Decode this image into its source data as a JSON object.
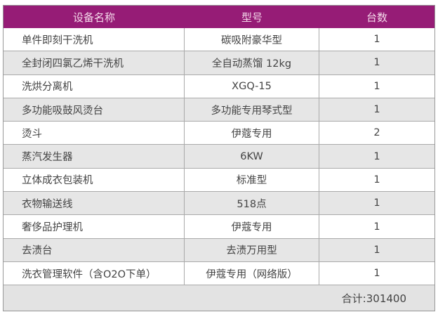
{
  "header": {
    "name": "设备名称",
    "model": "型号",
    "qty": "台数"
  },
  "rows": [
    {
      "name": "单件即刻干洗机",
      "model": "碳吸附豪华型",
      "qty": "1"
    },
    {
      "name": "全封闭四氯乙烯干洗机",
      "model": "全自动蒸馏 12kg",
      "qty": "1"
    },
    {
      "name": "洗烘分离机",
      "model": "XGQ-15",
      "qty": "1"
    },
    {
      "name": "多功能吸鼓风烫台",
      "model": "多功能专用琴式型",
      "qty": "1"
    },
    {
      "name": "烫斗",
      "model": "伊蔻专用",
      "qty": "2"
    },
    {
      "name": "蒸汽发生器",
      "model": "6KW",
      "qty": "1"
    },
    {
      "name": "立体成衣包装机",
      "model": "标准型",
      "qty": "1"
    },
    {
      "name": "衣物输送线",
      "model": "518点",
      "qty": "1"
    },
    {
      "name": "奢侈品护理机",
      "model": "伊蔻专用",
      "qty": "1"
    },
    {
      "name": "去渍台",
      "model": "去渍万用型",
      "qty": "1"
    },
    {
      "name": "洗衣管理软件（含O2O下单）",
      "model": "伊蔻专用（网络版）",
      "qty": "1"
    }
  ],
  "total": "合计:301400",
  "colors": {
    "header_bg": "#961c76",
    "alt_row": "#e6e6e6"
  }
}
